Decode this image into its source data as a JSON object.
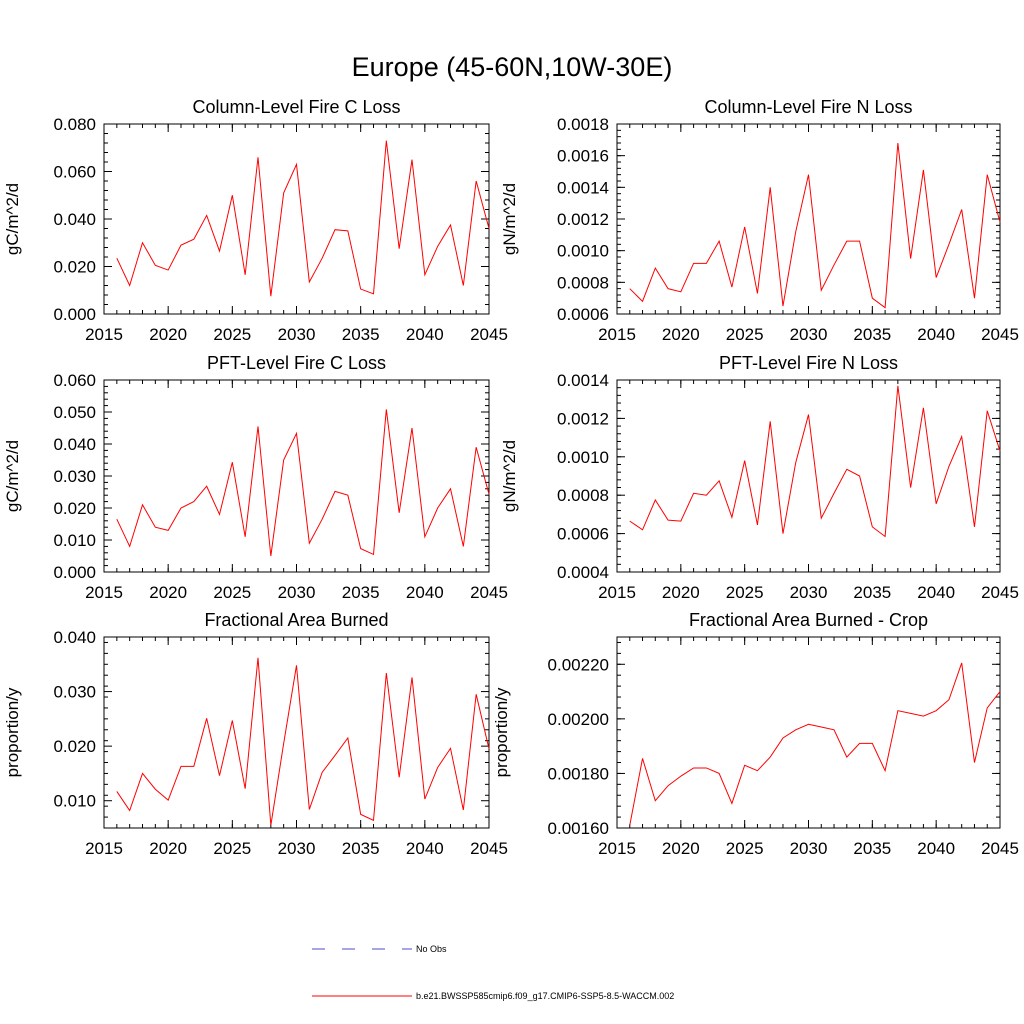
{
  "title": "Europe (45-60N,10W-30E)",
  "colors": {
    "model": "#ff0000",
    "obs": "#4b4bd2",
    "axis": "#000000"
  },
  "chart_data": [
    {
      "type": "line",
      "title": "Column-Level Fire C Loss",
      "xlabel": "",
      "ylabel": "gC/m^2/d",
      "xlim": [
        2015,
        2045
      ],
      "ylim": [
        0.0,
        0.08
      ],
      "xticks": [
        2015,
        2020,
        2025,
        2030,
        2035,
        2040,
        2045
      ],
      "xtick_labels": [
        "2015",
        "2020",
        "2025",
        "2030",
        "2035",
        "2040",
        "2045"
      ],
      "yticks": [
        0.0,
        0.02,
        0.04,
        0.06,
        0.08
      ],
      "ytick_labels": [
        "0.000",
        "0.020",
        "0.040",
        "0.060",
        "0.080"
      ],
      "yminor": 0.004,
      "x": [
        2016,
        2017,
        2018,
        2019,
        2020,
        2021,
        2022,
        2023,
        2024,
        2025,
        2026,
        2027,
        2028,
        2029,
        2030,
        2031,
        2032,
        2033,
        2034,
        2035,
        2036,
        2037,
        2038,
        2039,
        2040,
        2041,
        2042,
        2043,
        2044,
        2045
      ],
      "series": [
        {
          "name": "b.e21.BWSSP585cmip6.f09_g17.CMIP6-SSP5-8.5-WACCM.002",
          "values": [
            0.0235,
            0.012,
            0.03,
            0.0205,
            0.0185,
            0.029,
            0.0315,
            0.0415,
            0.0265,
            0.05,
            0.0165,
            0.066,
            0.0075,
            0.051,
            0.063,
            0.0135,
            0.0235,
            0.0355,
            0.035,
            0.0105,
            0.0085,
            0.073,
            0.0275,
            0.065,
            0.0165,
            0.0285,
            0.0375,
            0.012,
            0.056,
            0.036
          ]
        }
      ]
    },
    {
      "type": "line",
      "title": "Column-Level Fire N Loss",
      "xlabel": "",
      "ylabel": "gN/m^2/d",
      "xlim": [
        2015,
        2045
      ],
      "ylim": [
        0.0006,
        0.0018
      ],
      "xticks": [
        2015,
        2020,
        2025,
        2030,
        2035,
        2040,
        2045
      ],
      "xtick_labels": [
        "2015",
        "2020",
        "2025",
        "2030",
        "2035",
        "2040",
        "2045"
      ],
      "yticks": [
        0.0006,
        0.0008,
        0.001,
        0.0012,
        0.0014,
        0.0016,
        0.0018
      ],
      "ytick_labels": [
        "0.0006",
        "0.0008",
        "0.0010",
        "0.0012",
        "0.0014",
        "0.0016",
        "0.0018"
      ],
      "yminor": 4e-05,
      "x": [
        2016,
        2017,
        2018,
        2019,
        2020,
        2021,
        2022,
        2023,
        2024,
        2025,
        2026,
        2027,
        2028,
        2029,
        2030,
        2031,
        2032,
        2033,
        2034,
        2035,
        2036,
        2037,
        2038,
        2039,
        2040,
        2041,
        2042,
        2043,
        2044,
        2045
      ],
      "series": [
        {
          "name": "b.e21.BWSSP585cmip6.f09_g17.CMIP6-SSP5-8.5-WACCM.002",
          "values": [
            0.00076,
            0.00068,
            0.00089,
            0.00076,
            0.00074,
            0.00092,
            0.00092,
            0.00106,
            0.00077,
            0.00115,
            0.00073,
            0.0014,
            0.00065,
            0.00112,
            0.00148,
            0.00075,
            0.00091,
            0.00106,
            0.00106,
            0.0007,
            0.00064,
            0.00168,
            0.00095,
            0.00151,
            0.00083,
            0.00104,
            0.00126,
            0.0007,
            0.00148,
            0.00118
          ]
        }
      ]
    },
    {
      "type": "line",
      "title": "PFT-Level Fire C Loss",
      "xlabel": "",
      "ylabel": "gC/m^2/d",
      "xlim": [
        2015,
        2045
      ],
      "ylim": [
        0.0,
        0.06
      ],
      "xticks": [
        2015,
        2020,
        2025,
        2030,
        2035,
        2040,
        2045
      ],
      "xtick_labels": [
        "2015",
        "2020",
        "2025",
        "2030",
        "2035",
        "2040",
        "2045"
      ],
      "yticks": [
        0.0,
        0.01,
        0.02,
        0.03,
        0.04,
        0.05,
        0.06
      ],
      "ytick_labels": [
        "0.000",
        "0.010",
        "0.020",
        "0.030",
        "0.040",
        "0.050",
        "0.060"
      ],
      "yminor": 0.002,
      "x": [
        2016,
        2017,
        2018,
        2019,
        2020,
        2021,
        2022,
        2023,
        2024,
        2025,
        2026,
        2027,
        2028,
        2029,
        2030,
        2031,
        2032,
        2033,
        2034,
        2035,
        2036,
        2037,
        2038,
        2039,
        2040,
        2041,
        2042,
        2043,
        2044,
        2045
      ],
      "series": [
        {
          "name": "b.e21.BWSSP585cmip6.f09_g17.CMIP6-SSP5-8.5-WACCM.002",
          "values": [
            0.0165,
            0.008,
            0.021,
            0.014,
            0.013,
            0.02,
            0.022,
            0.0268,
            0.018,
            0.0343,
            0.011,
            0.0455,
            0.005,
            0.035,
            0.0433,
            0.009,
            0.0165,
            0.0252,
            0.024,
            0.0073,
            0.0055,
            0.0508,
            0.0185,
            0.045,
            0.011,
            0.02,
            0.026,
            0.008,
            0.039,
            0.0243
          ]
        }
      ]
    },
    {
      "type": "line",
      "title": "PFT-Level Fire N Loss",
      "xlabel": "",
      "ylabel": "gN/m^2/d",
      "xlim": [
        2015,
        2045
      ],
      "ylim": [
        0.0004,
        0.0014
      ],
      "xticks": [
        2015,
        2020,
        2025,
        2030,
        2035,
        2040,
        2045
      ],
      "xtick_labels": [
        "2015",
        "2020",
        "2025",
        "2030",
        "2035",
        "2040",
        "2045"
      ],
      "yticks": [
        0.0004,
        0.0006,
        0.0008,
        0.001,
        0.0012,
        0.0014
      ],
      "ytick_labels": [
        "0.0004",
        "0.0006",
        "0.0008",
        "0.0010",
        "0.0012",
        "0.0014"
      ],
      "yminor": 4e-05,
      "x": [
        2016,
        2017,
        2018,
        2019,
        2020,
        2021,
        2022,
        2023,
        2024,
        2025,
        2026,
        2027,
        2028,
        2029,
        2030,
        2031,
        2032,
        2033,
        2034,
        2035,
        2036,
        2037,
        2038,
        2039,
        2040,
        2041,
        2042,
        2043,
        2044,
        2045
      ],
      "series": [
        {
          "name": "b.e21.BWSSP585cmip6.f09_g17.CMIP6-SSP5-8.5-WACCM.002",
          "values": [
            0.000665,
            0.00062,
            0.000775,
            0.00067,
            0.000665,
            0.00081,
            0.0008,
            0.000875,
            0.000685,
            0.00098,
            0.000645,
            0.001185,
            0.0006,
            0.00097,
            0.00122,
            0.00068,
            0.00081,
            0.000935,
            0.0009,
            0.000635,
            0.000585,
            0.00137,
            0.00084,
            0.001255,
            0.000755,
            0.00095,
            0.001105,
            0.000635,
            0.00124,
            0.00103
          ]
        }
      ]
    },
    {
      "type": "line",
      "title": "Fractional Area Burned",
      "xlabel": "",
      "ylabel": "proportion/y",
      "xlim": [
        2015,
        2045
      ],
      "ylim": [
        0.005,
        0.04
      ],
      "xticks": [
        2015,
        2020,
        2025,
        2030,
        2035,
        2040,
        2045
      ],
      "xtick_labels": [
        "2015",
        "2020",
        "2025",
        "2030",
        "2035",
        "2040",
        "2045"
      ],
      "yticks": [
        0.01,
        0.02,
        0.03,
        0.04
      ],
      "ytick_labels": [
        "0.010",
        "0.020",
        "0.030",
        "0.040"
      ],
      "yminor": 0.002,
      "x": [
        2016,
        2017,
        2018,
        2019,
        2020,
        2021,
        2022,
        2023,
        2024,
        2025,
        2026,
        2027,
        2028,
        2029,
        2030,
        2031,
        2032,
        2033,
        2034,
        2035,
        2036,
        2037,
        2038,
        2039,
        2040,
        2041,
        2042,
        2043,
        2044,
        2045
      ],
      "series": [
        {
          "name": "b.e21.BWSSP585cmip6.f09_g17.CMIP6-SSP5-8.5-WACCM.002",
          "values": [
            0.0117,
            0.0082,
            0.015,
            0.0121,
            0.0101,
            0.0163,
            0.0163,
            0.0251,
            0.0146,
            0.0247,
            0.0122,
            0.0362,
            0.0055,
            0.0205,
            0.0348,
            0.0084,
            0.0152,
            0.0183,
            0.0215,
            0.0075,
            0.0064,
            0.0334,
            0.0143,
            0.0326,
            0.0103,
            0.0161,
            0.0196,
            0.0083,
            0.0295,
            0.0195
          ]
        }
      ]
    },
    {
      "type": "line",
      "title": "Fractional Area Burned - Crop",
      "xlabel": "",
      "ylabel": "proportion/y",
      "xlim": [
        2015,
        2045
      ],
      "ylim": [
        0.0016,
        0.0023
      ],
      "xticks": [
        2015,
        2020,
        2025,
        2030,
        2035,
        2040,
        2045
      ],
      "xtick_labels": [
        "2015",
        "2020",
        "2025",
        "2030",
        "2035",
        "2040",
        "2045"
      ],
      "yticks": [
        0.0016,
        0.0018,
        0.002,
        0.0022
      ],
      "ytick_labels": [
        "0.00160",
        "0.00180",
        "0.00200",
        "0.00220"
      ],
      "yminor": 4e-05,
      "x": [
        2016,
        2017,
        2018,
        2019,
        2020,
        2021,
        2022,
        2023,
        2024,
        2025,
        2026,
        2027,
        2028,
        2029,
        2030,
        2031,
        2032,
        2033,
        2034,
        2035,
        2036,
        2037,
        2038,
        2039,
        2040,
        2041,
        2042,
        2043,
        2044,
        2045
      ],
      "series": [
        {
          "name": "b.e21.BWSSP585cmip6.f09_g17.CMIP6-SSP5-8.5-WACCM.002",
          "values": [
            0.00161,
            0.001855,
            0.0017,
            0.001755,
            0.00179,
            0.00182,
            0.00182,
            0.0018,
            0.00169,
            0.00183,
            0.00181,
            0.00186,
            0.00193,
            0.00196,
            0.00198,
            0.00197,
            0.00196,
            0.00186,
            0.00191,
            0.00191,
            0.00181,
            0.00203,
            0.00202,
            0.00201,
            0.00203,
            0.00207,
            0.002205,
            0.00184,
            0.00204,
            0.0021
          ]
        }
      ]
    }
  ],
  "legend": {
    "obs_label": "No Obs",
    "model_label": "b.e21.BWSSP585cmip6.f09_g17.CMIP6-SSP5-8.5-WACCM.002"
  }
}
